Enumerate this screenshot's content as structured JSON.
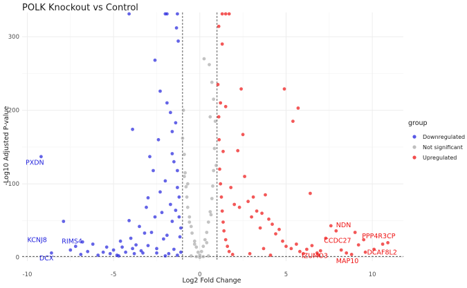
{
  "chart_data": {
    "type": "scatter",
    "title": "POLK Knockout vs Control",
    "xlabel": "Log2 Fold Change",
    "ylabel": "-Log10 Adjusted P-value",
    "xlim": [
      -10.3,
      11.8
    ],
    "ylim": [
      -5,
      333
    ],
    "xticks": [
      -10,
      -5,
      0,
      5,
      10
    ],
    "yticks": [
      0,
      100,
      200,
      300
    ],
    "fc_threshold": [
      -1,
      1
    ],
    "p_threshold": 1.3,
    "legend": {
      "title": "group",
      "position": "right",
      "items": [
        {
          "key": "down",
          "label": "Downregulated"
        },
        {
          "key": "ns",
          "label": "Not significant"
        },
        {
          "key": "up",
          "label": "Upregulated"
        }
      ]
    },
    "colors": {
      "down": "#2222dd",
      "ns": "#aaaaaa",
      "up": "#ee1111",
      "grid": "#ebebeb",
      "threshold": "#333333"
    },
    "series": [
      {
        "name": "Downregulated",
        "key": "down",
        "points": [
          [
            -9.2,
            137
          ],
          [
            -8.6,
            6
          ],
          [
            -7.9,
            49
          ],
          [
            -7.5,
            10
          ],
          [
            -7.2,
            15
          ],
          [
            -6.9,
            4
          ],
          [
            -6.8,
            21
          ],
          [
            -6.5,
            8
          ],
          [
            -6.2,
            18
          ],
          [
            -5.9,
            3
          ],
          [
            -5.6,
            7
          ],
          [
            -5.4,
            14
          ],
          [
            -5.2,
            5
          ],
          [
            -5.0,
            10
          ],
          [
            -4.8,
            3
          ],
          [
            -4.6,
            22
          ],
          [
            -4.5,
            14
          ],
          [
            -4.3,
            7
          ],
          [
            -4.1,
            50
          ],
          [
            -4.0,
            26
          ],
          [
            -3.8,
            5
          ],
          [
            -3.7,
            17
          ],
          [
            -3.5,
            42
          ],
          [
            -3.4,
            9
          ],
          [
            -3.2,
            33
          ],
          [
            -3.9,
            12
          ],
          [
            -3.9,
            174
          ],
          [
            -3.1,
            68
          ],
          [
            -3.0,
            81
          ],
          [
            -3.0,
            16
          ],
          [
            -2.9,
            137
          ],
          [
            -2.8,
            34
          ],
          [
            -2.7,
            118
          ],
          [
            -2.6,
            55
          ],
          [
            -2.5,
            12
          ],
          [
            -2.5,
            6
          ],
          [
            -2.4,
            160
          ],
          [
            -2.3,
            89
          ],
          [
            -2.2,
            61
          ],
          [
            -2.1,
            25
          ],
          [
            -2.0,
            104
          ],
          [
            -1.9,
            30
          ],
          [
            -1.8,
            5
          ],
          [
            -1.7,
            72
          ],
          [
            -1.6,
            49
          ],
          [
            -1.5,
            11
          ],
          [
            -2.6,
            268
          ],
          [
            -2.3,
            226
          ],
          [
            -1.9,
            210
          ],
          [
            -1.7,
            197
          ],
          [
            -1.6,
            141
          ],
          [
            -1.5,
            130
          ],
          [
            -1.4,
            183
          ],
          [
            -1.35,
            312
          ],
          [
            -1.25,
            294
          ],
          [
            -1.6,
            171
          ],
          [
            -1.3,
            118
          ],
          [
            -1.2,
            55
          ],
          [
            -1.15,
            28
          ],
          [
            -1.1,
            7
          ],
          [
            -1.3,
            95
          ],
          [
            -1.4,
            64
          ],
          [
            -1.2,
            82
          ],
          [
            -1.1,
            40
          ],
          [
            -3.3,
            6
          ],
          [
            -4.7,
            2
          ],
          [
            -2.0,
            2
          ],
          [
            -1.3,
            3
          ],
          [
            -4.1,
            331
          ],
          [
            -2.0,
            331
          ],
          [
            -1.9,
            331
          ],
          [
            -1.3,
            331
          ]
        ]
      },
      {
        "name": "Not significant",
        "key": "ns",
        "points": [
          [
            -1.0,
            162
          ],
          [
            -0.95,
            200
          ],
          [
            -0.9,
            140
          ],
          [
            -0.85,
            115
          ],
          [
            -0.8,
            96
          ],
          [
            -0.75,
            82
          ],
          [
            -0.7,
            68
          ],
          [
            -0.6,
            55
          ],
          [
            -0.5,
            42
          ],
          [
            -0.45,
            33
          ],
          [
            -0.3,
            22
          ],
          [
            -0.2,
            14
          ],
          [
            -0.1,
            7
          ],
          [
            0.0,
            3
          ],
          [
            0.1,
            8
          ],
          [
            0.2,
            15
          ],
          [
            0.3,
            24
          ],
          [
            0.4,
            34
          ],
          [
            0.5,
            48
          ],
          [
            0.6,
            62
          ],
          [
            0.7,
            80
          ],
          [
            0.75,
            97
          ],
          [
            0.8,
            118
          ],
          [
            0.85,
            148
          ],
          [
            0.9,
            185
          ],
          [
            0.8,
            215
          ],
          [
            0.7,
            238
          ],
          [
            0.55,
            262
          ],
          [
            0.25,
            270
          ],
          [
            0.6,
            191
          ],
          [
            -0.7,
            100
          ],
          [
            -0.3,
            18
          ],
          [
            0.4,
            20
          ],
          [
            -0.6,
            48
          ],
          [
            0.65,
            58
          ],
          [
            -0.9,
            110
          ],
          [
            0.95,
            125
          ],
          [
            -0.5,
            2
          ],
          [
            0.5,
            2
          ],
          [
            -0.2,
            1
          ],
          [
            0.2,
            1
          ],
          [
            0.0,
            0
          ]
        ]
      },
      {
        "name": "Upregulated",
        "key": "up",
        "points": [
          [
            1.05,
            235
          ],
          [
            1.1,
            191
          ],
          [
            1.12,
            160
          ],
          [
            1.15,
            120
          ],
          [
            1.2,
            100
          ],
          [
            1.25,
            82
          ],
          [
            1.3,
            63
          ],
          [
            1.35,
            48
          ],
          [
            1.4,
            36
          ],
          [
            1.5,
            24
          ],
          [
            1.6,
            15
          ],
          [
            1.7,
            8
          ],
          [
            1.9,
            4
          ],
          [
            1.3,
            290
          ],
          [
            1.1,
            314
          ],
          [
            1.2,
            210
          ],
          [
            1.5,
            205
          ],
          [
            1.35,
            144
          ],
          [
            2.2,
            145
          ],
          [
            2.5,
            167
          ],
          [
            2.4,
            229
          ],
          [
            1.8,
            95
          ],
          [
            2.0,
            72
          ],
          [
            2.3,
            68
          ],
          [
            2.6,
            110
          ],
          [
            2.8,
            76
          ],
          [
            3.0,
            55
          ],
          [
            3.1,
            82
          ],
          [
            3.3,
            63
          ],
          [
            3.5,
            40
          ],
          [
            3.6,
            60
          ],
          [
            3.8,
            85
          ],
          [
            4.0,
            52
          ],
          [
            4.2,
            45
          ],
          [
            4.4,
            32
          ],
          [
            4.6,
            38
          ],
          [
            4.8,
            22
          ],
          [
            5.0,
            15
          ],
          [
            5.3,
            12
          ],
          [
            5.6,
            18
          ],
          [
            5.8,
            8
          ],
          [
            6.0,
            5
          ],
          [
            6.2,
            11
          ],
          [
            6.5,
            16
          ],
          [
            6.8,
            6
          ],
          [
            7.0,
            9
          ],
          [
            7.3,
            26
          ],
          [
            7.6,
            43
          ],
          [
            7.9,
            36
          ],
          [
            8.2,
            10
          ],
          [
            8.5,
            6
          ],
          [
            9.0,
            34
          ],
          [
            9.2,
            17
          ],
          [
            9.5,
            24
          ],
          [
            9.6,
            7
          ],
          [
            10.1,
            11
          ],
          [
            10.6,
            18
          ],
          [
            10.9,
            20
          ],
          [
            8.8,
            4
          ],
          [
            3.7,
            12
          ],
          [
            4.9,
            229
          ],
          [
            5.7,
            203
          ],
          [
            5.4,
            185
          ],
          [
            6.4,
            87
          ],
          [
            4.1,
            3
          ],
          [
            2.9,
            5
          ],
          [
            6.9,
            3
          ],
          [
            1.3,
            331
          ],
          [
            1.5,
            331
          ],
          [
            1.7,
            331
          ]
        ]
      }
    ],
    "labels": [
      {
        "gene": "PXDN",
        "group": "down",
        "x": -10.1,
        "y": 126
      },
      {
        "gene": "KCNJ8",
        "group": "down",
        "x": -10.0,
        "y": 21
      },
      {
        "gene": "RIMS4",
        "group": "down",
        "x": -8.0,
        "y": 19
      },
      {
        "gene": "DCX",
        "group": "down",
        "x": -9.3,
        "y": -4
      },
      {
        "gene": "NDN",
        "group": "up",
        "x": 7.9,
        "y": 41
      },
      {
        "gene": "PPP4R3CP",
        "group": "up",
        "x": 9.4,
        "y": 26
      },
      {
        "gene": "CCDC27",
        "group": "up",
        "x": 7.2,
        "y": 20
      },
      {
        "gene": "DCAF8L2",
        "group": "up",
        "x": 9.7,
        "y": 4
      },
      {
        "gene": "IZUMO3",
        "group": "up",
        "x": 5.9,
        "y": -1
      },
      {
        "gene": "MAP10",
        "group": "up",
        "x": 7.9,
        "y": -8
      }
    ]
  }
}
